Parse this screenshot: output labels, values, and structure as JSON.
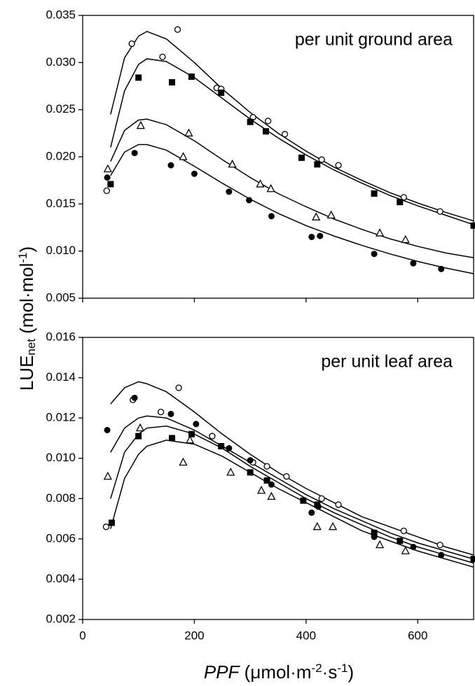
{
  "figure": {
    "ylabel": [
      {
        "text": "LUE"
      },
      {
        "text": "net",
        "style": "sub"
      },
      {
        "text": " (mol·mol"
      },
      {
        "text": "-1",
        "style": "sup"
      },
      {
        "text": ")"
      }
    ],
    "xlabel": [
      {
        "text": "PPF",
        "style": "italic"
      },
      {
        "text": " (μmol·m"
      },
      {
        "text": "-2",
        "style": "sup"
      },
      {
        "text": "·s"
      },
      {
        "text": "-1",
        "style": "sup"
      },
      {
        "text": ")"
      }
    ]
  },
  "chart_data": [
    {
      "type": "scatter",
      "annotation": "per unit ground area",
      "xlim": [
        0,
        700
      ],
      "xticks": [
        0,
        200,
        400,
        600
      ],
      "show_xtick_labels": false,
      "ylim": [
        0.005,
        0.035
      ],
      "yticks": [
        {
          "value": 0.005,
          "label": "0.005"
        },
        {
          "value": 0.01,
          "label": "0.010"
        },
        {
          "value": 0.015,
          "label": "0.015"
        },
        {
          "value": 0.02,
          "label": "0.020"
        },
        {
          "value": 0.025,
          "label": "0.025"
        },
        {
          "value": 0.03,
          "label": "0.030"
        },
        {
          "value": 0.035,
          "label": "0.035"
        }
      ],
      "series": [
        {
          "marker": "open-circle",
          "color": "#000000",
          "x": [
            43,
            88,
            143,
            170,
            240,
            248,
            305,
            332,
            362,
            428,
            458,
            575,
            640
          ],
          "values": [
            0.0164,
            0.032,
            0.0306,
            0.0335,
            0.0273,
            0.0272,
            0.0242,
            0.0238,
            0.0224,
            0.0197,
            0.0191,
            0.0157,
            0.0142
          ]
        },
        {
          "marker": "filled-square",
          "color": "#000000",
          "x": [
            50,
            100,
            160,
            195,
            248,
            300,
            328,
            392,
            420,
            522,
            568,
            700
          ],
          "values": [
            0.0171,
            0.0284,
            0.0279,
            0.0285,
            0.0268,
            0.0237,
            0.0227,
            0.0199,
            0.0192,
            0.0161,
            0.0152,
            0.0127
          ]
        },
        {
          "marker": "open-triangle",
          "color": "#000000",
          "x": [
            45,
            104,
            180,
            190,
            268,
            318,
            337,
            418,
            445,
            532,
            578
          ],
          "values": [
            0.0187,
            0.0233,
            0.02,
            0.0225,
            0.0192,
            0.0171,
            0.0166,
            0.0136,
            0.0138,
            0.0119,
            0.0112
          ]
        },
        {
          "marker": "filled-circle",
          "color": "#000000",
          "x": [
            44,
            93,
            158,
            200,
            262,
            298,
            338,
            410,
            425,
            522,
            592,
            642
          ],
          "values": [
            0.0178,
            0.0204,
            0.0191,
            0.0182,
            0.0163,
            0.0154,
            0.0137,
            0.0115,
            0.0116,
            0.0097,
            0.0087,
            0.0081
          ]
        }
      ],
      "curve_x": [
        50,
        75,
        100,
        115,
        150,
        200,
        250,
        300,
        350,
        400,
        450,
        500,
        550,
        600,
        650,
        700
      ],
      "curves": [
        {
          "color": "#000000",
          "values": [
            0.0245,
            0.0305,
            0.0328,
            0.0333,
            0.0325,
            0.03,
            0.0272,
            0.0247,
            0.0225,
            0.0206,
            0.0189,
            0.0175,
            0.0162,
            0.0151,
            0.0141,
            0.0132
          ]
        },
        {
          "color": "#000000",
          "values": [
            0.021,
            0.027,
            0.0298,
            0.0304,
            0.0301,
            0.0284,
            0.0262,
            0.024,
            0.022,
            0.0202,
            0.0186,
            0.0172,
            0.0159,
            0.0148,
            0.0138,
            0.0128
          ]
        },
        {
          "color": "#000000",
          "values": [
            0.0195,
            0.0228,
            0.0239,
            0.024,
            0.0234,
            0.0217,
            0.0197,
            0.0178,
            0.0161,
            0.0147,
            0.0134,
            0.0123,
            0.0113,
            0.0105,
            0.0098,
            0.0093
          ]
        },
        {
          "color": "#000000",
          "values": [
            0.018,
            0.0205,
            0.0213,
            0.0213,
            0.0207,
            0.019,
            0.0172,
            0.0155,
            0.014,
            0.0127,
            0.0116,
            0.0106,
            0.0097,
            0.0089,
            0.0082,
            0.0076
          ]
        }
      ]
    },
    {
      "type": "scatter",
      "annotation": "per unit leaf area",
      "xlim": [
        0,
        700
      ],
      "xticks": [
        0,
        200,
        400,
        600
      ],
      "show_xtick_labels": true,
      "ylim": [
        0.002,
        0.016
      ],
      "yticks": [
        {
          "value": 0.002,
          "label": "0.002"
        },
        {
          "value": 0.004,
          "label": "0.004"
        },
        {
          "value": 0.006,
          "label": "0.006"
        },
        {
          "value": 0.008,
          "label": "0.008"
        },
        {
          "value": 0.01,
          "label": "0.010"
        },
        {
          "value": 0.012,
          "label": "0.012"
        },
        {
          "value": 0.014,
          "label": "0.014"
        },
        {
          "value": 0.016,
          "label": "0.016"
        }
      ],
      "series": [
        {
          "marker": "open-circle",
          "color": "#000000",
          "x": [
            42,
            90,
            140,
            172,
            232,
            305,
            330,
            365,
            428,
            458,
            575,
            640
          ],
          "values": [
            0.0066,
            0.0129,
            0.0123,
            0.0135,
            0.0111,
            0.0098,
            0.0096,
            0.0091,
            0.008,
            0.0077,
            0.0064,
            0.0057
          ]
        },
        {
          "marker": "filled-square",
          "color": "#000000",
          "x": [
            52,
            100,
            160,
            195,
            248,
            300,
            330,
            395,
            420,
            522,
            568,
            700
          ],
          "values": [
            0.0068,
            0.0111,
            0.011,
            0.0112,
            0.0106,
            0.0093,
            0.0089,
            0.0079,
            0.0077,
            0.0063,
            0.0059,
            0.005
          ]
        },
        {
          "marker": "open-triangle",
          "color": "#000000",
          "x": [
            45,
            103,
            180,
            192,
            265,
            320,
            338,
            420,
            448,
            532,
            578
          ],
          "values": [
            0.0091,
            0.0115,
            0.0098,
            0.0109,
            0.0093,
            0.0084,
            0.0081,
            0.0066,
            0.0066,
            0.0057,
            0.0054
          ]
        },
        {
          "marker": "filled-circle",
          "color": "#000000",
          "x": [
            44,
            93,
            158,
            203,
            262,
            300,
            338,
            410,
            422,
            522,
            592,
            642
          ],
          "values": [
            0.0114,
            0.013,
            0.0122,
            0.0117,
            0.0105,
            0.0099,
            0.0087,
            0.0073,
            0.0076,
            0.0061,
            0.0056,
            0.0052
          ]
        }
      ],
      "curve_x": [
        50,
        75,
        100,
        115,
        150,
        200,
        250,
        300,
        350,
        400,
        450,
        500,
        550,
        600,
        650,
        700
      ],
      "curves": [
        {
          "color": "#000000",
          "values": [
            0.0127,
            0.0135,
            0.0138,
            0.0137,
            0.0133,
            0.0123,
            0.0112,
            0.0102,
            0.0093,
            0.0085,
            0.0078,
            0.0071,
            0.0066,
            0.0061,
            0.0056,
            0.0052
          ]
        },
        {
          "color": "#000000",
          "values": [
            0.0103,
            0.0115,
            0.012,
            0.0121,
            0.012,
            0.0114,
            0.0106,
            0.0098,
            0.009,
            0.0082,
            0.0075,
            0.0069,
            0.0063,
            0.0058,
            0.0054,
            0.005
          ]
        },
        {
          "color": "#000000",
          "values": [
            0.008,
            0.0103,
            0.0112,
            0.0115,
            0.0116,
            0.0112,
            0.0105,
            0.0096,
            0.0088,
            0.008,
            0.0073,
            0.0067,
            0.0061,
            0.0056,
            0.0052,
            0.0048
          ]
        },
        {
          "color": "#000000",
          "values": [
            0.0065,
            0.009,
            0.0102,
            0.0106,
            0.0109,
            0.0107,
            0.0101,
            0.0093,
            0.0085,
            0.0078,
            0.0071,
            0.0064,
            0.0059,
            0.0054,
            0.005,
            0.0046
          ]
        }
      ]
    }
  ]
}
